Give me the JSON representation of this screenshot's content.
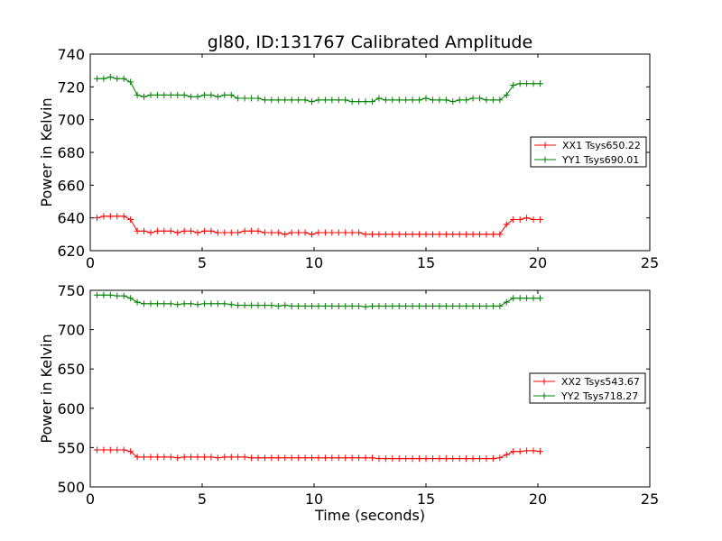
{
  "chart_data": [
    {
      "type": "line",
      "title": "gl80, ID:131767 Calibrated Amplitude",
      "xlabel": "",
      "ylabel": "Power in Kelvin",
      "xlim": [
        0,
        25
      ],
      "ylim": [
        620,
        740
      ],
      "xticks": [
        0,
        5,
        10,
        15,
        20,
        25
      ],
      "yticks": [
        620,
        640,
        660,
        680,
        700,
        720,
        740
      ],
      "legend_position": "center-right",
      "grid": false,
      "series": [
        {
          "name": "XX1 Tsys650.22",
          "color": "#ff0000",
          "x": [
            0.3,
            0.6,
            0.9,
            1.2,
            1.5,
            1.8,
            2.1,
            2.4,
            2.7,
            3.0,
            3.3,
            3.6,
            3.9,
            4.2,
            4.5,
            4.8,
            5.1,
            5.4,
            5.7,
            6.0,
            6.3,
            6.6,
            6.9,
            7.2,
            7.5,
            7.8,
            8.1,
            8.4,
            8.7,
            9.0,
            9.3,
            9.6,
            9.9,
            10.2,
            10.5,
            10.8,
            11.1,
            11.4,
            11.7,
            12.0,
            12.3,
            12.6,
            12.9,
            13.2,
            13.5,
            13.8,
            14.1,
            14.4,
            14.7,
            15.0,
            15.3,
            15.6,
            15.9,
            16.2,
            16.5,
            16.8,
            17.1,
            17.4,
            17.7,
            18.0,
            18.3,
            18.6,
            18.9,
            19.2,
            19.5,
            19.8,
            20.1
          ],
          "y": [
            640,
            641,
            641,
            641,
            641,
            639,
            632,
            632,
            631,
            632,
            632,
            632,
            631,
            632,
            632,
            631,
            632,
            632,
            631,
            631,
            631,
            631,
            632,
            632,
            632,
            631,
            631,
            631,
            630,
            631,
            631,
            631,
            630,
            631,
            631,
            631,
            631,
            631,
            631,
            631,
            630,
            630,
            630,
            630,
            630,
            630,
            630,
            630,
            630,
            630,
            630,
            630,
            630,
            630,
            630,
            630,
            630,
            630,
            630,
            630,
            630,
            636,
            639,
            639,
            640,
            639,
            639
          ]
        },
        {
          "name": "YY1 Tsys690.01",
          "color": "#008000",
          "x": [
            0.3,
            0.6,
            0.9,
            1.2,
            1.5,
            1.8,
            2.1,
            2.4,
            2.7,
            3.0,
            3.3,
            3.6,
            3.9,
            4.2,
            4.5,
            4.8,
            5.1,
            5.4,
            5.7,
            6.0,
            6.3,
            6.6,
            6.9,
            7.2,
            7.5,
            7.8,
            8.1,
            8.4,
            8.7,
            9.0,
            9.3,
            9.6,
            9.9,
            10.2,
            10.5,
            10.8,
            11.1,
            11.4,
            11.7,
            12.0,
            12.3,
            12.6,
            12.9,
            13.2,
            13.5,
            13.8,
            14.1,
            14.4,
            14.7,
            15.0,
            15.3,
            15.6,
            15.9,
            16.2,
            16.5,
            16.8,
            17.1,
            17.4,
            17.7,
            18.0,
            18.3,
            18.6,
            18.9,
            19.2,
            19.5,
            19.8,
            20.1
          ],
          "y": [
            725,
            725,
            726,
            725,
            725,
            723,
            715,
            714,
            715,
            715,
            715,
            715,
            715,
            715,
            714,
            714,
            715,
            715,
            714,
            715,
            715,
            713,
            713,
            713,
            713,
            712,
            712,
            712,
            712,
            712,
            712,
            712,
            711,
            712,
            712,
            712,
            712,
            712,
            711,
            711,
            711,
            711,
            713,
            712,
            712,
            712,
            712,
            712,
            712,
            713,
            712,
            712,
            712,
            711,
            712,
            712,
            713,
            713,
            712,
            712,
            712,
            715,
            721,
            722,
            722,
            722,
            722
          ]
        }
      ]
    },
    {
      "type": "line",
      "title": "",
      "xlabel": "Time (seconds)",
      "ylabel": "Power in Kelvin",
      "xlim": [
        0,
        25
      ],
      "ylim": [
        500,
        750
      ],
      "xticks": [
        0,
        5,
        10,
        15,
        20,
        25
      ],
      "yticks": [
        500,
        550,
        600,
        650,
        700,
        750
      ],
      "legend_position": "center-right",
      "grid": false,
      "series": [
        {
          "name": "XX2 Tsys543.67",
          "color": "#ff0000",
          "x": [
            0.3,
            0.6,
            0.9,
            1.2,
            1.5,
            1.8,
            2.1,
            2.4,
            2.7,
            3.0,
            3.3,
            3.6,
            3.9,
            4.2,
            4.5,
            4.8,
            5.1,
            5.4,
            5.7,
            6.0,
            6.3,
            6.6,
            6.9,
            7.2,
            7.5,
            7.8,
            8.1,
            8.4,
            8.7,
            9.0,
            9.3,
            9.6,
            9.9,
            10.2,
            10.5,
            10.8,
            11.1,
            11.4,
            11.7,
            12.0,
            12.3,
            12.6,
            12.9,
            13.2,
            13.5,
            13.8,
            14.1,
            14.4,
            14.7,
            15.0,
            15.3,
            15.6,
            15.9,
            16.2,
            16.5,
            16.8,
            17.1,
            17.4,
            17.7,
            18.0,
            18.3,
            18.6,
            18.9,
            19.2,
            19.5,
            19.8,
            20.1
          ],
          "y": [
            547,
            547,
            547,
            547,
            547,
            545,
            538,
            538,
            538,
            538,
            538,
            538,
            537,
            538,
            538,
            538,
            538,
            538,
            537,
            538,
            538,
            538,
            538,
            537,
            537,
            537,
            537,
            537,
            537,
            537,
            537,
            537,
            537,
            537,
            537,
            537,
            537,
            537,
            537,
            537,
            537,
            537,
            536,
            536,
            536,
            536,
            536,
            536,
            536,
            536,
            536,
            536,
            536,
            536,
            536,
            536,
            536,
            536,
            536,
            536,
            537,
            541,
            545,
            545,
            546,
            546,
            545
          ]
        },
        {
          "name": "YY2 Tsys718.27",
          "color": "#008000",
          "x": [
            0.3,
            0.6,
            0.9,
            1.2,
            1.5,
            1.8,
            2.1,
            2.4,
            2.7,
            3.0,
            3.3,
            3.6,
            3.9,
            4.2,
            4.5,
            4.8,
            5.1,
            5.4,
            5.7,
            6.0,
            6.3,
            6.6,
            6.9,
            7.2,
            7.5,
            7.8,
            8.1,
            8.4,
            8.7,
            9.0,
            9.3,
            9.6,
            9.9,
            10.2,
            10.5,
            10.8,
            11.1,
            11.4,
            11.7,
            12.0,
            12.3,
            12.6,
            12.9,
            13.2,
            13.5,
            13.8,
            14.1,
            14.4,
            14.7,
            15.0,
            15.3,
            15.6,
            15.9,
            16.2,
            16.5,
            16.8,
            17.1,
            17.4,
            17.7,
            18.0,
            18.3,
            18.6,
            18.9,
            19.2,
            19.5,
            19.8,
            20.1
          ],
          "y": [
            744,
            744,
            744,
            743,
            743,
            740,
            735,
            733,
            733,
            733,
            733,
            733,
            732,
            733,
            733,
            732,
            733,
            733,
            733,
            733,
            732,
            731,
            731,
            731,
            731,
            731,
            731,
            730,
            731,
            730,
            730,
            730,
            730,
            730,
            730,
            730,
            730,
            730,
            730,
            730,
            729,
            730,
            730,
            730,
            730,
            730,
            730,
            730,
            730,
            730,
            730,
            730,
            730,
            730,
            730,
            730,
            730,
            730,
            730,
            730,
            730,
            735,
            740,
            740,
            740,
            740,
            740
          ]
        }
      ]
    }
  ]
}
